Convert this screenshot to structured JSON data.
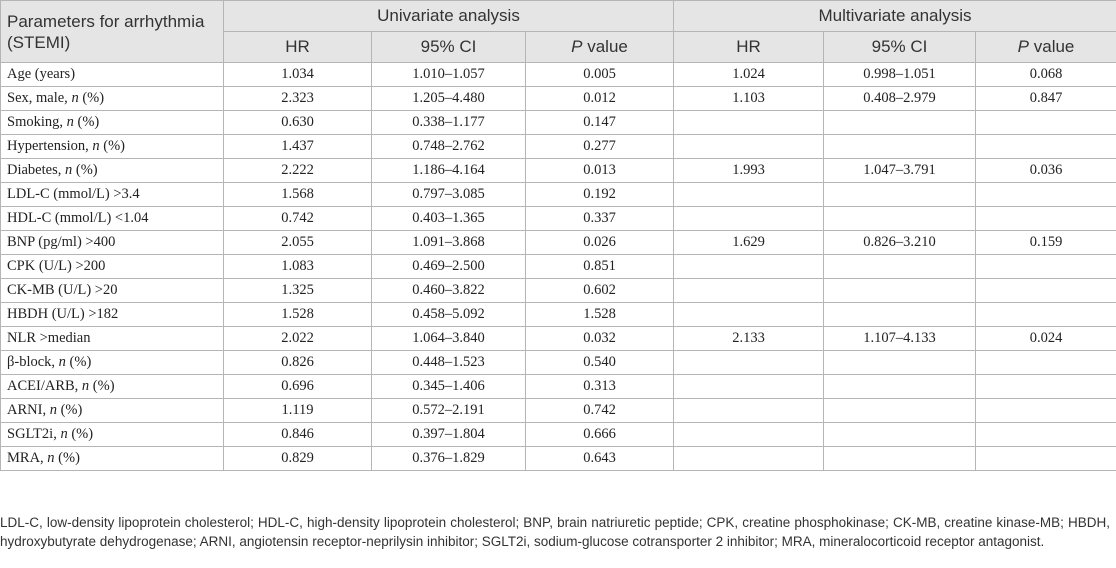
{
  "chart_data": {
    "type": "table",
    "header": {
      "param_label": "Parameters for arrhythmia (STEMI)",
      "group1": "Univariate analysis",
      "group2": "Multivariate analysis",
      "hr": "HR",
      "ci": "95% CI",
      "p_italic": "P",
      "p_rest": " value"
    },
    "rows": [
      {
        "label": "Age (years)",
        "italic": "",
        "suffix": "",
        "u_hr": "1.034",
        "u_ci": "1.010–1.057",
        "u_p": "0.005",
        "m_hr": "1.024",
        "m_ci": "0.998–1.051",
        "m_p": "0.068"
      },
      {
        "label": "Sex, male, ",
        "italic": "n",
        "suffix": " (%)",
        "u_hr": "2.323",
        "u_ci": "1.205–4.480",
        "u_p": "0.012",
        "m_hr": "1.103",
        "m_ci": "0.408–2.979",
        "m_p": "0.847"
      },
      {
        "label": "Smoking, ",
        "italic": "n",
        "suffix": " (%)",
        "u_hr": "0.630",
        "u_ci": "0.338–1.177",
        "u_p": "0.147",
        "m_hr": "",
        "m_ci": "",
        "m_p": ""
      },
      {
        "label": "Hypertension, ",
        "italic": "n",
        "suffix": " (%)",
        "u_hr": "1.437",
        "u_ci": "0.748–2.762",
        "u_p": "0.277",
        "m_hr": "",
        "m_ci": "",
        "m_p": ""
      },
      {
        "label": "Diabetes, ",
        "italic": "n",
        "suffix": " (%)",
        "u_hr": "2.222",
        "u_ci": "1.186–4.164",
        "u_p": "0.013",
        "m_hr": "1.993",
        "m_ci": "1.047–3.791",
        "m_p": "0.036"
      },
      {
        "label": "LDL-C (mmol/L) >3.4",
        "italic": "",
        "suffix": "",
        "u_hr": "1.568",
        "u_ci": "0.797–3.085",
        "u_p": "0.192",
        "m_hr": "",
        "m_ci": "",
        "m_p": ""
      },
      {
        "label": "HDL-C (mmol/L) <1.04",
        "italic": "",
        "suffix": "",
        "u_hr": "0.742",
        "u_ci": "0.403–1.365",
        "u_p": "0.337",
        "m_hr": "",
        "m_ci": "",
        "m_p": ""
      },
      {
        "label": "BNP (pg/ml) >400",
        "italic": "",
        "suffix": "",
        "u_hr": "2.055",
        "u_ci": "1.091–3.868",
        "u_p": "0.026",
        "m_hr": "1.629",
        "m_ci": "0.826–3.210",
        "m_p": "0.159"
      },
      {
        "label": "CPK (U/L) >200",
        "italic": "",
        "suffix": "",
        "u_hr": "1.083",
        "u_ci": "0.469–2.500",
        "u_p": "0.851",
        "m_hr": "",
        "m_ci": "",
        "m_p": ""
      },
      {
        "label": "CK-MB (U/L) >20",
        "italic": "",
        "suffix": "",
        "u_hr": "1.325",
        "u_ci": "0.460–3.822",
        "u_p": "0.602",
        "m_hr": "",
        "m_ci": "",
        "m_p": ""
      },
      {
        "label": "HBDH (U/L) >182",
        "italic": "",
        "suffix": "",
        "u_hr": "1.528",
        "u_ci": "0.458–5.092",
        "u_p": "1.528",
        "m_hr": "",
        "m_ci": "",
        "m_p": ""
      },
      {
        "label": "NLR >median",
        "italic": "",
        "suffix": "",
        "u_hr": "2.022",
        "u_ci": "1.064–3.840",
        "u_p": "0.032",
        "m_hr": "2.133",
        "m_ci": "1.107–4.133",
        "m_p": "0.024"
      },
      {
        "label": "β-block, ",
        "italic": "n",
        "suffix": " (%)",
        "u_hr": "0.826",
        "u_ci": "0.448–1.523",
        "u_p": "0.540",
        "m_hr": "",
        "m_ci": "",
        "m_p": ""
      },
      {
        "label": "ACEI/ARB, ",
        "italic": "n",
        "suffix": " (%)",
        "u_hr": "0.696",
        "u_ci": "0.345–1.406",
        "u_p": "0.313",
        "m_hr": "",
        "m_ci": "",
        "m_p": ""
      },
      {
        "label": "ARNI, ",
        "italic": "n",
        "suffix": " (%)",
        "u_hr": "1.119",
        "u_ci": "0.572–2.191",
        "u_p": "0.742",
        "m_hr": "",
        "m_ci": "",
        "m_p": ""
      },
      {
        "label": "SGLT2i, ",
        "italic": "n",
        "suffix": " (%)",
        "u_hr": "0.846",
        "u_ci": "0.397–1.804",
        "u_p": "0.666",
        "m_hr": "",
        "m_ci": "",
        "m_p": ""
      },
      {
        "label": "MRA, ",
        "italic": "n",
        "suffix": " (%)",
        "u_hr": "0.829",
        "u_ci": "0.376–1.829",
        "u_p": "0.643",
        "m_hr": "",
        "m_ci": "",
        "m_p": ""
      }
    ],
    "footnote": "LDL-C, low-density lipoprotein cholesterol; HDL-C, high-density lipoprotein cholesterol; BNP, brain natriuretic peptide; CPK, creatine phosphokinase; CK-MB, creatine kinase-MB; HBDH, hydroxybutyrate dehydrogenase; ARNI, angiotensin receptor-neprilysin inhibitor; SGLT2i, sodium-glucose cotransporter 2 inhibitor; MRA, mineralocorticoid receptor antagonist."
  },
  "colors": {
    "header_bg": "#e5e5e5",
    "border": "#b5b5b5",
    "text": "#222222"
  }
}
